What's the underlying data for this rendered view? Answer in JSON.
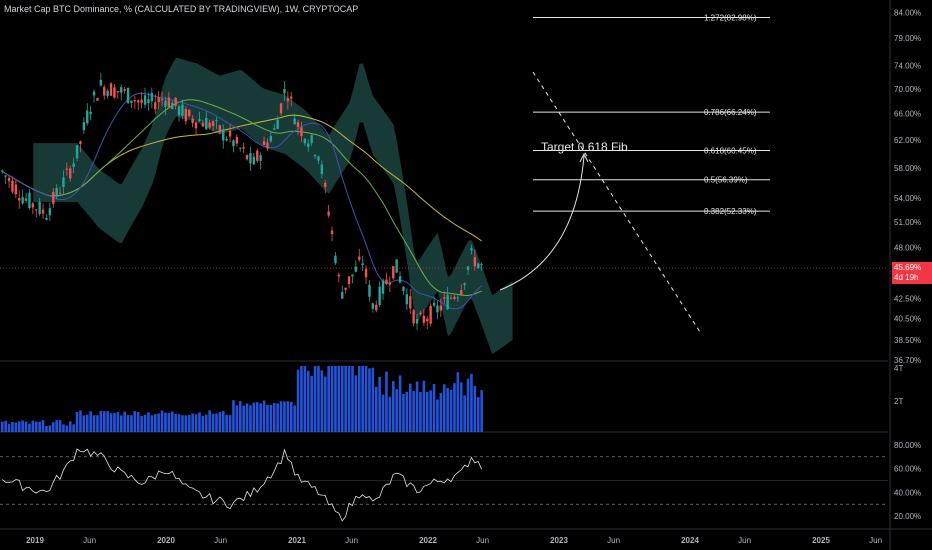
{
  "header": {
    "title": "Market Cap BTC Dominance, % (CALCULATED BY TRADINGVIEW), 1W, CRYPTOCAP"
  },
  "price_tag": {
    "value": "45.69%",
    "countdown": "4d 19h"
  },
  "annotation": {
    "text": "Target 0.618 Fib"
  },
  "volume_axis": [
    "4T",
    "2T"
  ],
  "colors": {
    "up": "#26a69a",
    "down": "#ef5350",
    "cloud": "#1f4d4a",
    "ma_yellow": "#c9b93a",
    "ma_green": "#6ab04c",
    "ma_blue": "#3f51b5",
    "rsi": "#e6e6e6",
    "volume": "#2962ff"
  },
  "chart_data": [
    {
      "type": "line",
      "name_on_chart": "Market Cap BTC Dominance, %",
      "ylim": [
        36.7,
        85.5
      ],
      "y_ticks": [
        "84.00%",
        "79.00%",
        "74.00%",
        "70.00%",
        "66.00%",
        "62.00%",
        "58.00%",
        "54.00%",
        "51.00%",
        "48.00%",
        "42.50%",
        "40.50%",
        "38.50%",
        "36.70%"
      ],
      "x_ticks": [
        "2019",
        "Jun",
        "2020",
        "Jun",
        "2021",
        "Jun",
        "2022",
        "Jun",
        "2023",
        "Jun",
        "2024",
        "Jun",
        "2025",
        "Jun"
      ],
      "close_series": [
        [
          "2018-10",
          57.5
        ],
        [
          "2018-12",
          54.0
        ],
        [
          "2019-02",
          52.0
        ],
        [
          "2019-04",
          57.0
        ],
        [
          "2019-05",
          60.5
        ],
        [
          "2019-06",
          67.0
        ],
        [
          "2019-07",
          70.5
        ],
        [
          "2019-09",
          69.5
        ],
        [
          "2019-11",
          67.5
        ],
        [
          "2020-01",
          68.5
        ],
        [
          "2020-03",
          65.5
        ],
        [
          "2020-05",
          64.5
        ],
        [
          "2020-07",
          62.0
        ],
        [
          "2020-09",
          58.5
        ],
        [
          "2020-11",
          63.5
        ],
        [
          "2020-12",
          70.5
        ],
        [
          "2021-01",
          64.5
        ],
        [
          "2021-03",
          60.0
        ],
        [
          "2021-05",
          43.0
        ],
        [
          "2021-07",
          46.5
        ],
        [
          "2021-08",
          41.5
        ],
        [
          "2021-10",
          46.0
        ],
        [
          "2021-12",
          40.0
        ],
        [
          "2022-02",
          41.5
        ],
        [
          "2022-04",
          43.5
        ],
        [
          "2022-05",
          47.0
        ],
        [
          "2022-06",
          45.7
        ]
      ],
      "fib_levels": [
        {
          "label": "1.272(82.98%)",
          "value": 82.98
        },
        {
          "label": "0.786(66.24%)",
          "value": 66.24
        },
        {
          "label": "0.618(60.45%)",
          "value": 60.45
        },
        {
          "label": "0.5(56.39%)",
          "value": 56.39
        },
        {
          "label": "0.382(52.33%)",
          "value": 52.33
        }
      ],
      "current_price": 45.69
    },
    {
      "type": "bar",
      "name_on_chart": "Volume",
      "y_ticks": [
        "4T",
        "2T"
      ]
    },
    {
      "type": "line",
      "name_on_chart": "RSI",
      "ylim": [
        10,
        90
      ],
      "y_ticks": [
        "80.00%",
        "60.00%",
        "40.00%",
        "20.00%"
      ],
      "bands": [
        70,
        30
      ],
      "series": [
        [
          "2018-10",
          52
        ],
        [
          "2018-12",
          45
        ],
        [
          "2019-02",
          40
        ],
        [
          "2019-04",
          62
        ],
        [
          "2019-05",
          78
        ],
        [
          "2019-06",
          74
        ],
        [
          "2019-07",
          70
        ],
        [
          "2019-09",
          55
        ],
        [
          "2019-11",
          48
        ],
        [
          "2020-01",
          60
        ],
        [
          "2020-03",
          42
        ],
        [
          "2020-05",
          35
        ],
        [
          "2020-07",
          30
        ],
        [
          "2020-09",
          40
        ],
        [
          "2020-11",
          60
        ],
        [
          "2020-12",
          75
        ],
        [
          "2021-01",
          52
        ],
        [
          "2021-03",
          40
        ],
        [
          "2021-05",
          18
        ],
        [
          "2021-07",
          42
        ],
        [
          "2021-08",
          30
        ],
        [
          "2021-10",
          55
        ],
        [
          "2021-12",
          42
        ],
        [
          "2022-02",
          50
        ],
        [
          "2022-04",
          55
        ],
        [
          "2022-05",
          70
        ],
        [
          "2022-06",
          62
        ]
      ]
    }
  ]
}
